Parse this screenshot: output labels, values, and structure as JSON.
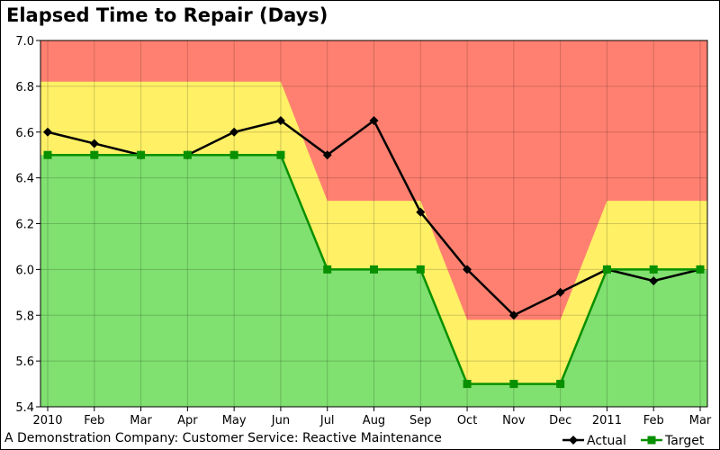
{
  "chart_data": {
    "type": "line",
    "title": "Elapsed Time to Repair (Days)",
    "footer": "A Demonstration Company: Customer Service: Reactive Maintenance",
    "categories": [
      "2010",
      "Feb",
      "Mar",
      "Apr",
      "May",
      "Jun",
      "Jul",
      "Aug",
      "Sep",
      "Oct",
      "Nov",
      "Dec",
      "2011",
      "Feb",
      "Mar"
    ],
    "ylim": [
      5.4,
      7.0
    ],
    "yticks": [
      "5.4",
      "5.6",
      "5.8",
      "6.0",
      "6.2",
      "6.4",
      "6.6",
      "6.8",
      "7.0"
    ],
    "grid": true,
    "legend_position": "bottom-right",
    "bands": {
      "green_upper": [
        6.5,
        6.5,
        6.5,
        6.5,
        6.5,
        6.5,
        6.0,
        6.0,
        6.0,
        5.5,
        5.5,
        5.5,
        6.0,
        6.0,
        6.0
      ],
      "yellow_upper": [
        6.82,
        6.82,
        6.82,
        6.82,
        6.82,
        6.82,
        6.3,
        6.3,
        6.3,
        5.78,
        5.78,
        5.78,
        6.3,
        6.3,
        6.3
      ],
      "colors": {
        "green": "#80e070",
        "yellow": "#fff066",
        "red": "#ff8070"
      }
    },
    "series": [
      {
        "name": "Actual",
        "color": "#000000",
        "marker": "diamond",
        "values": [
          6.6,
          6.55,
          6.5,
          6.5,
          6.6,
          6.65,
          6.5,
          6.65,
          6.25,
          6.0,
          5.8,
          5.9,
          6.0,
          5.95,
          6.0
        ]
      },
      {
        "name": "Target",
        "color": "#089000",
        "marker": "square",
        "values": [
          6.5,
          6.5,
          6.5,
          6.5,
          6.5,
          6.5,
          6.0,
          6.0,
          6.0,
          5.5,
          5.5,
          5.5,
          6.0,
          6.0,
          6.0
        ]
      }
    ]
  }
}
